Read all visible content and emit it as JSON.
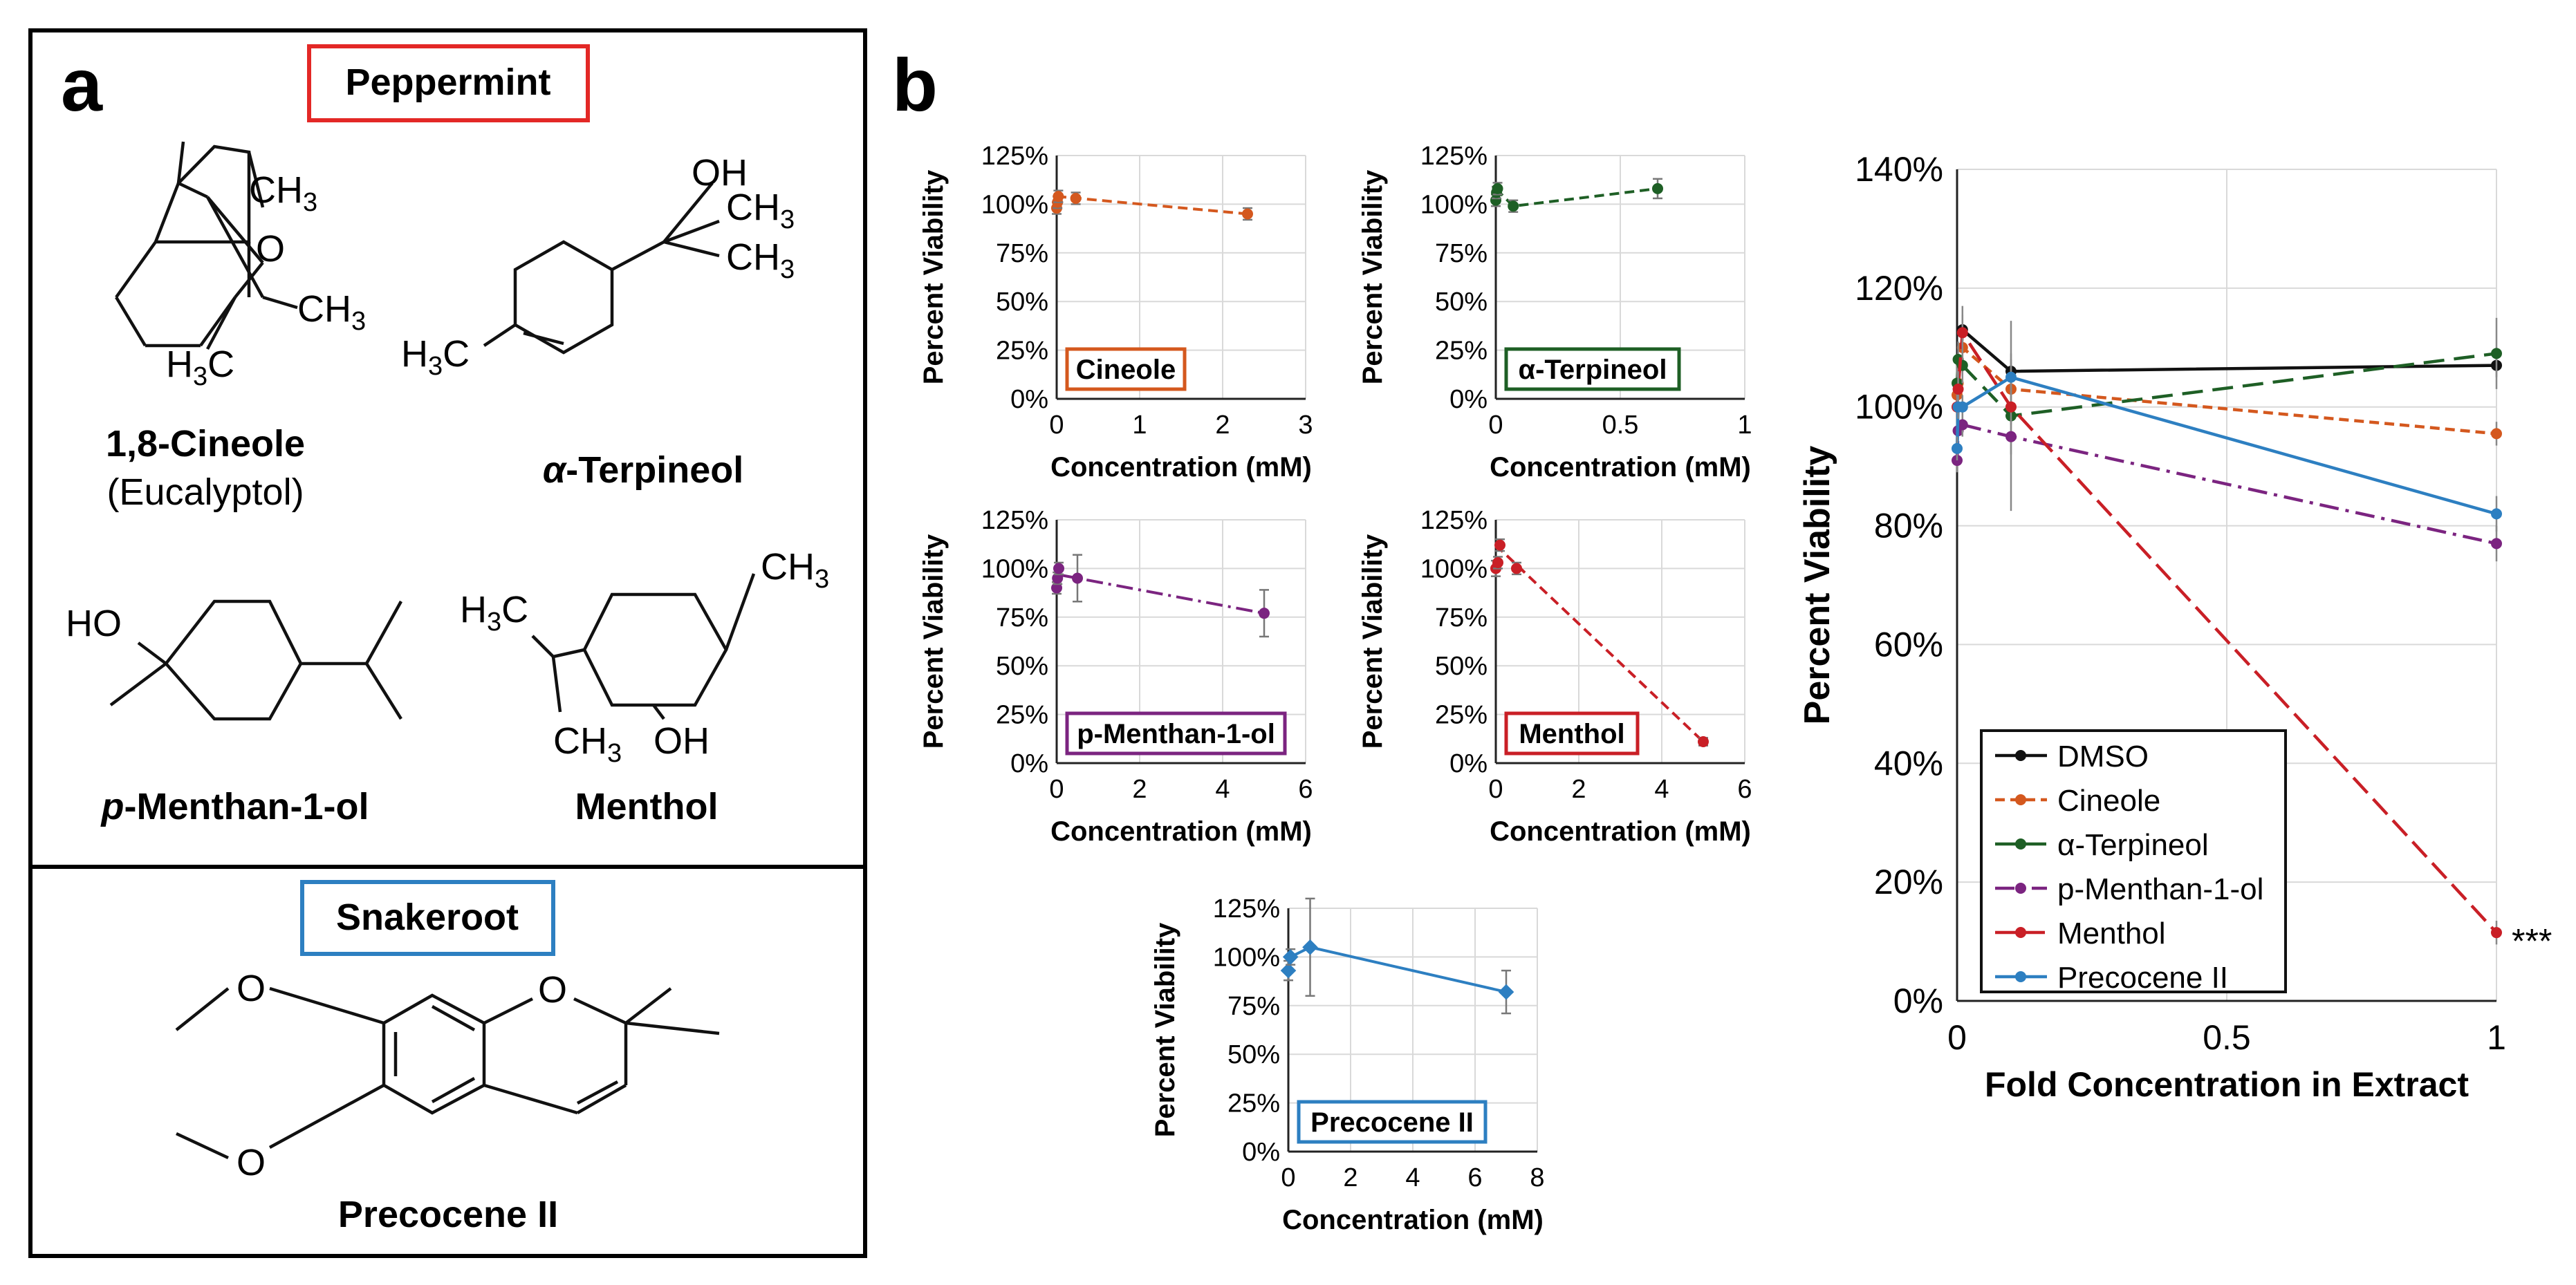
{
  "panel_a": {
    "label": "a",
    "group1": "Peppermint",
    "group2": "Snakeroot",
    "compounds": {
      "cineole": {
        "name": "1,8-Cineole",
        "sub": "(Eucalyptol)"
      },
      "terpineol": {
        "prefix": "α",
        "name": "-Terpineol"
      },
      "menthanol": {
        "prefix": "p",
        "name": "-Menthan-1-ol"
      },
      "menthol": {
        "name": "Menthol"
      },
      "precocene": {
        "name": "Precocene II"
      }
    },
    "atoms": {
      "ch3": "CH",
      "three": "3",
      "h3c_h": "H",
      "h3c_c": "C",
      "o": "O",
      "oh": "OH",
      "ho": "HO"
    }
  },
  "panel_b": {
    "label": "b"
  },
  "colors": {
    "dmso": "#111111",
    "cineole": "#d4581e",
    "terpineol": "#1e5f25",
    "menthanol": "#7b2480",
    "menthol": "#c91f26",
    "precocene": "#2d7fc1",
    "peppermint_box": "#e32826",
    "snakeroot_box": "#2d7fc1"
  },
  "chart_data": [
    {
      "id": "cineole",
      "type": "scatter",
      "label": "Cineole",
      "xlabel": "Concentration (mM)",
      "ylabel": "Percent Viability",
      "xlim": [
        0,
        3
      ],
      "xticks": [
        "0",
        "1",
        "2",
        "3"
      ],
      "ylim": [
        0,
        125
      ],
      "yticks": [
        "0%",
        "25%",
        "50%",
        "75%",
        "100%",
        "125%"
      ],
      "points": [
        {
          "x": 0.0,
          "y": 98,
          "err": 3
        },
        {
          "x": 0.01,
          "y": 101,
          "err": 3
        },
        {
          "x": 0.02,
          "y": 104,
          "err": 3
        },
        {
          "x": 0.23,
          "y": 103,
          "err": 3
        },
        {
          "x": 2.3,
          "y": 95,
          "err": 3
        }
      ],
      "trend": [
        [
          0.0,
          104
        ],
        [
          2.3,
          95
        ]
      ]
    },
    {
      "id": "terpineol",
      "type": "scatter",
      "label": "α-Terpineol",
      "xlabel": "Concentration (mM)",
      "ylabel": "Percent Viability",
      "xlim": [
        0,
        1
      ],
      "xticks": [
        "0",
        "0.5",
        "1"
      ],
      "ylim": [
        0,
        125
      ],
      "yticks": [
        "0%",
        "25%",
        "50%",
        "75%",
        "100%",
        "125%"
      ],
      "points": [
        {
          "x": 0.0,
          "y": 102,
          "err": 3
        },
        {
          "x": 0.003,
          "y": 106,
          "err": 3
        },
        {
          "x": 0.007,
          "y": 108,
          "err": 3
        },
        {
          "x": 0.07,
          "y": 99,
          "err": 3
        },
        {
          "x": 0.65,
          "y": 108,
          "err": 5
        }
      ],
      "trend": [
        [
          0.0,
          108
        ],
        [
          0.07,
          99
        ],
        [
          0.65,
          108
        ]
      ]
    },
    {
      "id": "menthanol",
      "type": "scatter",
      "label": "p-Menthan-1-ol",
      "xlabel": "Concentration (mM)",
      "ylabel": "Percent Viability",
      "xlim": [
        0,
        6
      ],
      "xticks": [
        "0",
        "2",
        "4",
        "6"
      ],
      "ylim": [
        0,
        125
      ],
      "yticks": [
        "0%",
        "25%",
        "50%",
        "75%",
        "100%",
        "125%"
      ],
      "points": [
        {
          "x": 0.0,
          "y": 90,
          "err": 3
        },
        {
          "x": 0.02,
          "y": 95,
          "err": 3
        },
        {
          "x": 0.05,
          "y": 100,
          "err": 3
        },
        {
          "x": 0.5,
          "y": 95,
          "err": 12
        },
        {
          "x": 5.0,
          "y": 77,
          "err": 12
        }
      ],
      "trend": [
        [
          0.0,
          97
        ],
        [
          5.0,
          77
        ]
      ]
    },
    {
      "id": "menthol",
      "type": "scatter",
      "label": "Menthol",
      "xlabel": "Concentration (mM)",
      "ylabel": "Percent Viability",
      "xlim": [
        0,
        6
      ],
      "xticks": [
        "0",
        "2",
        "4",
        "6"
      ],
      "ylim": [
        0,
        125
      ],
      "yticks": [
        "0%",
        "25%",
        "50%",
        "75%",
        "100%",
        "125%"
      ],
      "points": [
        {
          "x": 0.0,
          "y": 100,
          "err": 4
        },
        {
          "x": 0.05,
          "y": 103,
          "err": 3
        },
        {
          "x": 0.1,
          "y": 112,
          "err": 3
        },
        {
          "x": 0.5,
          "y": 100,
          "err": 3
        },
        {
          "x": 5.0,
          "y": 11,
          "err": 2
        }
      ],
      "trend": [
        [
          0.0,
          112
        ],
        [
          5.0,
          11
        ]
      ]
    },
    {
      "id": "precocene",
      "type": "scatter",
      "label": "Precocene II",
      "xlabel": "Concentration (mM)",
      "ylabel": "Percent Viability",
      "xlim": [
        0,
        8
      ],
      "xticks": [
        "0",
        "2",
        "4",
        "6",
        "8"
      ],
      "ylim": [
        0,
        125
      ],
      "yticks": [
        "0%",
        "25%",
        "50%",
        "75%",
        "100%",
        "125%"
      ],
      "points": [
        {
          "x": 0.0,
          "y": 93,
          "err": 5
        },
        {
          "x": 0.07,
          "y": 100,
          "err": 4
        },
        {
          "x": 0.7,
          "y": 105,
          "err": 25
        },
        {
          "x": 7.0,
          "y": 82,
          "err": 11
        }
      ],
      "trend": [
        [
          0.0,
          93
        ],
        [
          0.07,
          100
        ],
        [
          0.7,
          105
        ],
        [
          7.0,
          82
        ]
      ]
    },
    {
      "id": "main",
      "type": "line",
      "xlabel": "Fold Concentration in Extract",
      "ylabel": "Percent Viability",
      "xlim": [
        0,
        1
      ],
      "xticks": [
        "0",
        "0.5",
        "1"
      ],
      "ylim": [
        0,
        140
      ],
      "yticks": [
        "0%",
        "20%",
        "40%",
        "60%",
        "80%",
        "100%",
        "120%",
        "140%"
      ],
      "legend_position": "bottom-left",
      "annotation": {
        "text": "***",
        "x": 1.0,
        "y": 11
      },
      "series": [
        {
          "name": "DMSO",
          "key": "dmso",
          "x": [
            0.01,
            0.1,
            1.0
          ],
          "y": [
            113,
            106,
            107
          ],
          "err": [
            4,
            3,
            2
          ]
        },
        {
          "name": "Cineole",
          "key": "cineole",
          "x": [
            0.0,
            0.002,
            0.01,
            0.1,
            1.0
          ],
          "y": [
            102,
            104,
            110,
            103,
            95.5
          ],
          "err": [
            2,
            2,
            2,
            2,
            2
          ]
        },
        {
          "name": "α-Terpineol",
          "key": "terpineol",
          "x": [
            0.0,
            0.002,
            0.01,
            0.1,
            1.0
          ],
          "y": [
            104,
            108,
            107,
            98.5,
            109
          ],
          "err": [
            3,
            3,
            3,
            16,
            6
          ]
        },
        {
          "name": "p-Menthan-1-ol",
          "key": "menthanol",
          "x": [
            0.0,
            0.002,
            0.01,
            0.1,
            1.0
          ],
          "y": [
            91,
            96,
            97,
            95,
            77
          ],
          "err": [
            2,
            2,
            2,
            3,
            3
          ]
        },
        {
          "name": "Menthol",
          "key": "menthol",
          "x": [
            0.0,
            0.002,
            0.01,
            0.1,
            1.0
          ],
          "y": [
            100,
            103,
            112.5,
            100,
            11.5
          ],
          "err": [
            3,
            3,
            3,
            3,
            2
          ]
        },
        {
          "name": "Precocene II",
          "key": "precocene",
          "x": [
            0.0,
            0.002,
            0.01,
            0.1,
            1.0
          ],
          "y": [
            93,
            100,
            100,
            105,
            82
          ],
          "err": [
            2,
            2,
            2,
            3,
            3
          ]
        }
      ]
    }
  ]
}
